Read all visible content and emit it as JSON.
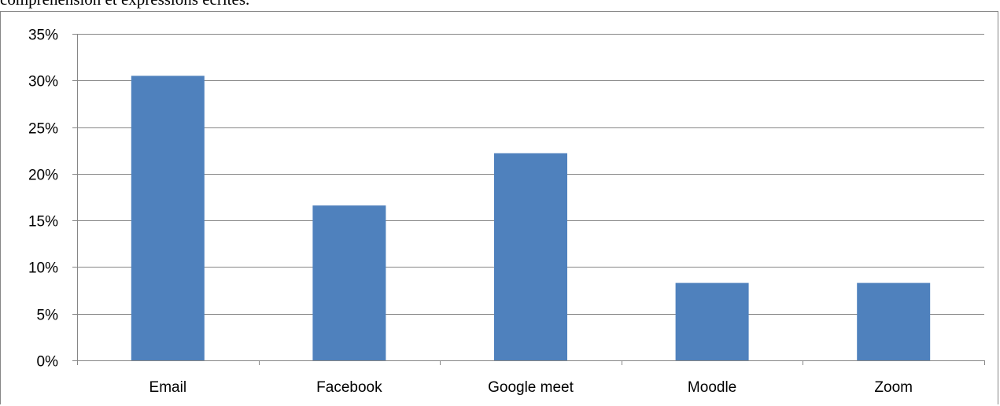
{
  "caption": "compréhension et expressions écrites.",
  "colors": {
    "bar": "#4f81bd",
    "grid": "#868686"
  },
  "chart_data": {
    "type": "bar",
    "categories": [
      "Email",
      "Facebook",
      "Google meet",
      "Moodle",
      "Zoom"
    ],
    "values": [
      0.305,
      0.166,
      0.222,
      0.083,
      0.083
    ],
    "title": "",
    "xlabel": "",
    "ylabel": "",
    "ylim": [
      0,
      0.35
    ],
    "yticks": [
      {
        "value": 0,
        "label": "0%"
      },
      {
        "value": 0.05,
        "label": "5%"
      },
      {
        "value": 0.1,
        "label": "10%"
      },
      {
        "value": 0.15,
        "label": "15%"
      },
      {
        "value": 0.2,
        "label": "20%"
      },
      {
        "value": 0.25,
        "label": "25%"
      },
      {
        "value": 0.3,
        "label": "30%"
      },
      {
        "value": 0.35,
        "label": "35%"
      }
    ],
    "grid": true,
    "legend": "none"
  }
}
